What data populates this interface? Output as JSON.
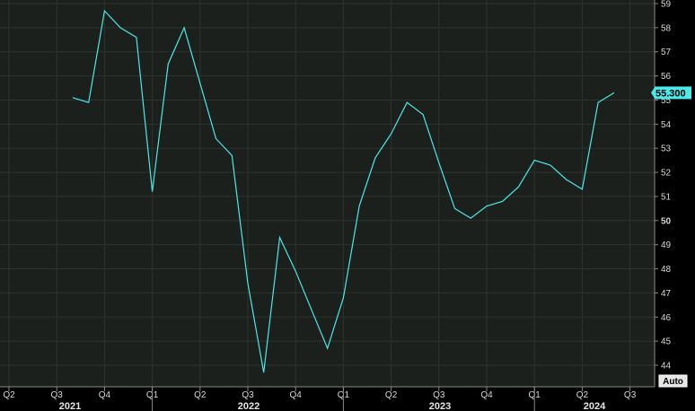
{
  "chart_data": {
    "type": "line",
    "title": "",
    "xlabel": "",
    "ylabel": "",
    "ylim": [
      43.6,
      59.1
    ],
    "y_ticks": [
      44,
      45,
      46,
      47,
      48,
      49,
      50,
      51,
      52,
      53,
      54,
      55,
      56,
      57,
      58,
      59
    ],
    "bold_y_tick": 50,
    "x_quarter_labels": [
      "Q2",
      "Q3",
      "Q4",
      "Q1",
      "Q2",
      "Q3",
      "Q4",
      "Q1",
      "Q2",
      "Q3",
      "Q4",
      "Q1",
      "Q2",
      "Q3"
    ],
    "x_year_labels": [
      "2021",
      "2022",
      "2023",
      "2024"
    ],
    "grid": true,
    "series": [
      {
        "color": "#4de8e8",
        "x": [
          "2021-08",
          "2021-09",
          "2021-10",
          "2021-11",
          "2021-12",
          "2022-01",
          "2022-02",
          "2022-03",
          "2022-04",
          "2022-05",
          "2022-06",
          "2022-07",
          "2022-08",
          "2022-09",
          "2022-10",
          "2022-11",
          "2022-12",
          "2023-01",
          "2023-02",
          "2023-03",
          "2023-04",
          "2023-05",
          "2023-06",
          "2023-07",
          "2023-08",
          "2023-09",
          "2023-10",
          "2023-11",
          "2023-12",
          "2024-01",
          "2024-02",
          "2024-03",
          "2024-04",
          "2024-05",
          "2024-06"
        ],
        "values": [
          55.1,
          54.9,
          58.7,
          58.0,
          57.6,
          51.2,
          56.5,
          58.0,
          55.7,
          53.4,
          52.7,
          47.4,
          43.7,
          49.3,
          47.9,
          46.3,
          44.7,
          46.8,
          50.6,
          52.6,
          53.6,
          54.9,
          54.4,
          52.4,
          50.5,
          50.1,
          50.6,
          50.8,
          51.4,
          52.5,
          52.3,
          51.7,
          51.3,
          54.9,
          55.3
        ]
      }
    ],
    "last_value_label": "55.300",
    "corner_button_label": "Auto",
    "colors": {
      "background": "#000000",
      "plot_background": "#1c201c",
      "grid": "#2d332d",
      "line": "#4de8e8",
      "last_value_box": "#4de8e8",
      "tick_text": "#d8d8d8"
    }
  }
}
